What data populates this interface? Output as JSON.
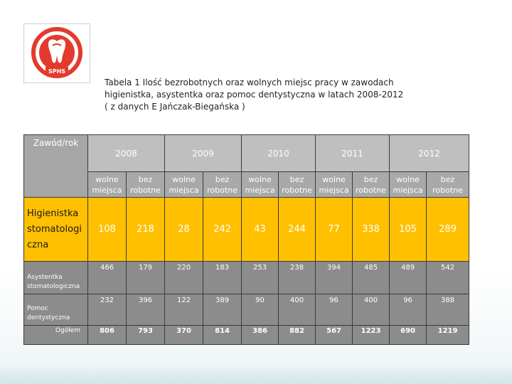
{
  "logo": {
    "text": "SPHS"
  },
  "caption": {
    "line1": "Tabela 1 Ilość bezrobotnych oraz wolnych miejsc pracy w zawodach",
    "line2": "higienistka, asystentka oraz pomoc dentystyczna w latach 2008-2012",
    "line3": "( z danych E Jańczak-Biegańska )"
  },
  "table": {
    "corner_label": "Zawód/rok",
    "years": [
      "2008",
      "2009",
      "2010",
      "2011",
      "2012"
    ],
    "sub_wolne": "wolne miejsca",
    "sub_bez": "bez robotne",
    "rows": [
      {
        "label": "Higienistka stomatologi czna",
        "values": [
          "108",
          "218",
          "28",
          "242",
          "43",
          "244",
          "77",
          "338",
          "105",
          "289"
        ]
      },
      {
        "label": "Asystentka stomatologiczna",
        "values": [
          "466",
          "179",
          "220",
          "183",
          "253",
          "238",
          "394",
          "485",
          "489",
          "542"
        ]
      },
      {
        "label": "Pomoc dentystyczna",
        "values": [
          "232",
          "396",
          "122",
          "389",
          "90",
          "400",
          "96",
          "400",
          "96",
          "388"
        ]
      },
      {
        "label": "Ogółem",
        "values": [
          "806",
          "793",
          "370",
          "814",
          "386",
          "882",
          "567",
          "1223",
          "690",
          "1219"
        ]
      }
    ]
  },
  "colors": {
    "highlight": "#ffc000",
    "header_gray": "#bfbfbf",
    "body_gray": "#8c8c8c"
  }
}
